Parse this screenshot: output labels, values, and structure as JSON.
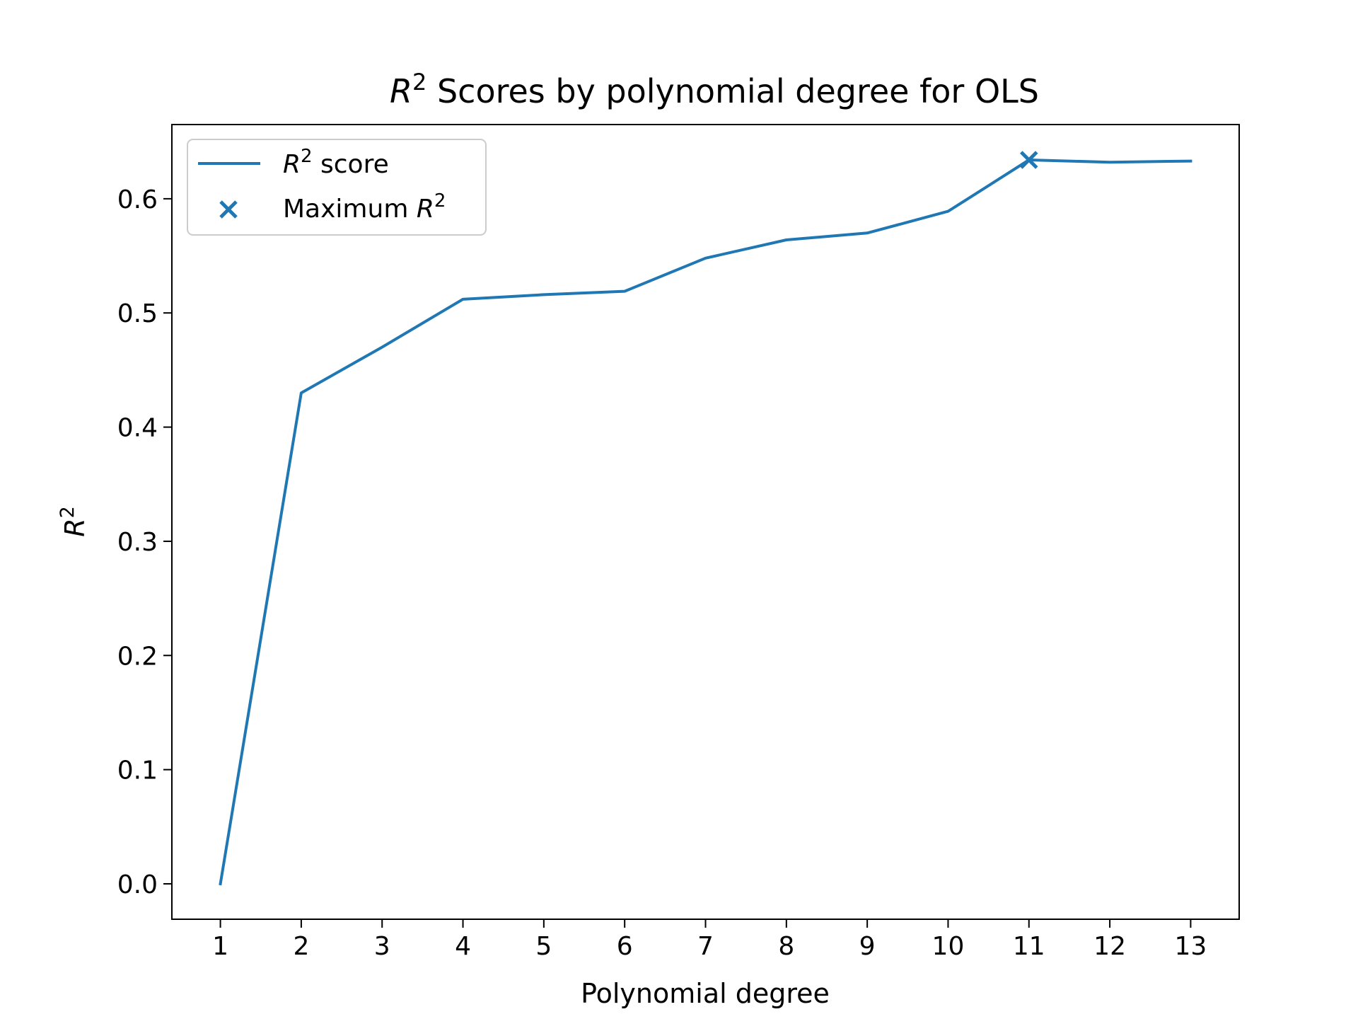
{
  "chart_data": {
    "type": "line",
    "title_prefix": "R",
    "title_suffix": " Scores by polynomial degree for OLS",
    "xlabel": "Polynomial degree",
    "ylabel": "R",
    "superscript": "2",
    "x": [
      1,
      2,
      3,
      4,
      5,
      6,
      7,
      8,
      9,
      10,
      11,
      12,
      13
    ],
    "xticks": [
      "1",
      "2",
      "3",
      "4",
      "5",
      "6",
      "7",
      "8",
      "9",
      "10",
      "11",
      "12",
      "13"
    ],
    "yticks": [
      "0.0",
      "0.1",
      "0.2",
      "0.3",
      "0.4",
      "0.5",
      "0.6"
    ],
    "xlim": [
      0.4,
      13.6
    ],
    "ylim": [
      -0.031,
      0.665
    ],
    "grid": false,
    "legend_placement": "top-left",
    "series": [
      {
        "legend_prefix": "R",
        "legend_suffix": " score",
        "color": "#1f77b4",
        "values": [
          0.0,
          0.43,
          0.47,
          0.512,
          0.516,
          0.519,
          0.548,
          0.564,
          0.57,
          0.589,
          0.634,
          0.632,
          0.633
        ]
      }
    ],
    "maximum": {
      "legend_prefix": "Maximum ",
      "legend_suffix": "R",
      "marker": "x",
      "color": "#1f77b4",
      "x": 11,
      "y": 0.634
    }
  }
}
